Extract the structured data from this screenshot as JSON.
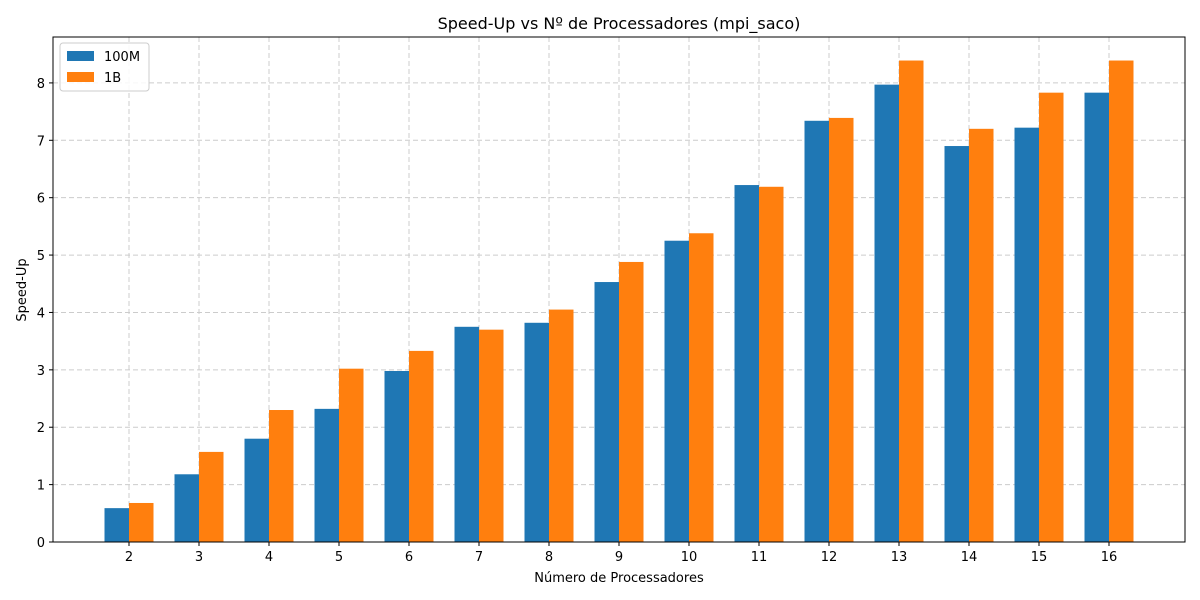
{
  "chart_data": {
    "type": "bar",
    "title": "Speed-Up vs Nº de Processadores (mpi_saco)",
    "xlabel": "Número de Processadores",
    "ylabel": "Speed-Up",
    "categories": [
      "2",
      "3",
      "4",
      "5",
      "6",
      "7",
      "8",
      "9",
      "10",
      "11",
      "12",
      "13",
      "14",
      "15",
      "16"
    ],
    "series": [
      {
        "name": "100M",
        "color": "#1f77b4",
        "values": [
          0.59,
          1.18,
          1.8,
          2.32,
          2.98,
          3.75,
          3.82,
          4.53,
          5.25,
          6.22,
          7.34,
          7.97,
          6.9,
          7.22,
          7.83
        ]
      },
      {
        "name": "1B",
        "color": "#ff7f0e",
        "values": [
          0.68,
          1.57,
          2.3,
          3.02,
          3.33,
          3.7,
          4.05,
          4.88,
          5.38,
          6.19,
          7.39,
          8.39,
          7.2,
          7.83,
          8.39
        ]
      }
    ],
    "ylim": [
      0,
      8.8
    ],
    "yticks": [
      "0",
      "1",
      "2",
      "3",
      "4",
      "5",
      "6",
      "7",
      "8"
    ],
    "grid": true,
    "legend_position": "top-left"
  }
}
